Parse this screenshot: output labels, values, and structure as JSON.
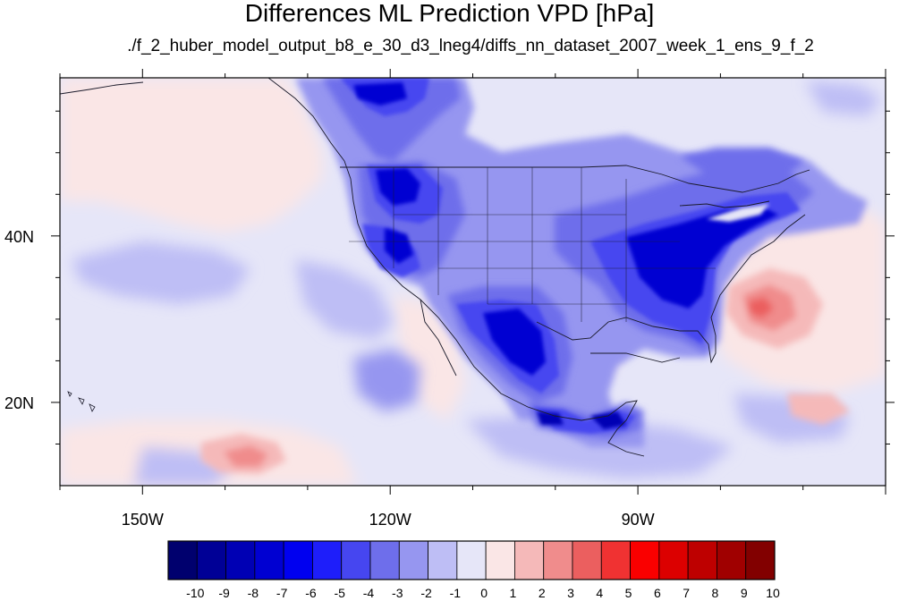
{
  "title": "Differences ML Prediction VPD [hPa]",
  "subtitle": "./f_2_huber_model_output_b8_e_30_d3_lneg4/diffs_nn_dataset_2007_week_1_ens_9_f_2",
  "map": {
    "projection": "cylindrical-equidistant",
    "lon_range": [
      -160,
      -60
    ],
    "lat_range": [
      10,
      59
    ],
    "lon_ticks": [
      {
        "label": "150W",
        "value": -150
      },
      {
        "label": "120W",
        "value": -120
      },
      {
        "label": "90W",
        "value": -90
      }
    ],
    "lat_ticks": [
      {
        "label": "20N",
        "value": 20
      },
      {
        "label": "40N",
        "value": 40
      }
    ],
    "background_color": "#e6e6f8"
  },
  "colorbar": {
    "labels": [
      "-10",
      "-9",
      "-8",
      "-7",
      "-6",
      "-5",
      "-4",
      "-3",
      "-2",
      "-1",
      "0",
      "1",
      "2",
      "3",
      "4",
      "5",
      "6",
      "7",
      "8",
      "9",
      "10"
    ],
    "colors": [
      "#00006e",
      "#000096",
      "#0000b4",
      "#0000d2",
      "#0000f0",
      "#1e1efa",
      "#4646f0",
      "#6e6eeb",
      "#9696f0",
      "#bebef5",
      "#e6e6f8",
      "#fae6e6",
      "#f5b9b9",
      "#f08c8c",
      "#eb5f5f",
      "#f03232",
      "#fa0000",
      "#dc0000",
      "#be0000",
      "#a00000",
      "#820000"
    ]
  }
}
